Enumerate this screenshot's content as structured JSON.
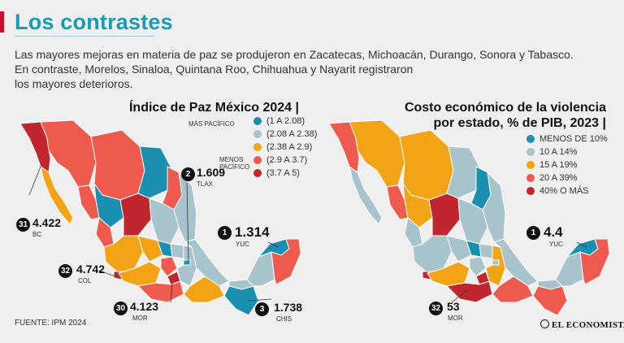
{
  "header": {
    "title": "Los contrastes",
    "intro_lines": [
      "Las mayores mejoras en materia de paz se produjeron en Zacatecas, Michoacán, Durango, Sonora y Tabasco.",
      "En contraste, Morelos, Sinaloa, Quintana Roo, Chihuahua y Nayarit registraron",
      "los mayores deterioros."
    ]
  },
  "colors": {
    "cat1": "#1a8fb0",
    "cat2": "#a7c4cd",
    "cat3": "#f2a316",
    "cat4": "#ee5a4e",
    "cat5": "#c0262d",
    "accent": "#1a9bb5",
    "title_bar": "#c8102e"
  },
  "left_map": {
    "title": "Índice de Paz México 2024 |",
    "legend_note_top": "MÁS PACÍFICO",
    "legend_note_bottom_1": "MENOS",
    "legend_note_bottom_2": "PACÍFICO",
    "legend": [
      "(1 A 2.08)",
      "(2.08 A 2.38)",
      "(2.38 A 2.9)",
      "(2.9 A 3.7)",
      "(3.7 A 5)"
    ],
    "callouts": {
      "bc": {
        "rank": "31",
        "value": "4.422",
        "abbr": "BC"
      },
      "tlax": {
        "rank": "2",
        "value": "1.609",
        "abbr": "TLAX"
      },
      "yuc": {
        "rank": "1",
        "value": "1.314",
        "abbr": "YUC"
      },
      "col": {
        "rank": "32",
        "value": "4.742",
        "abbr": "COL"
      },
      "mor": {
        "rank": "30",
        "value": "4.123",
        "abbr": "MOR"
      },
      "chis": {
        "rank": "3",
        "value": "1.738",
        "abbr": "CHIS"
      }
    }
  },
  "right_map": {
    "title_line1": "Costo económico de la violencia",
    "title_line2": "por estado, % de PIB, 2023 |",
    "legend": [
      "MENOS DE 10%",
      "10 A 14%",
      "15 A 19%",
      "20 A 39%",
      "40% O MÁS"
    ],
    "callouts": {
      "yuc": {
        "rank": "1",
        "value": "4.4",
        "abbr": "YUC"
      },
      "gro": {
        "rank": "32",
        "value": "53",
        "abbr": "MOR"
      }
    }
  },
  "footer": {
    "source": "FUENTE: IPM 2024",
    "logo": "EL ECONOMISTA"
  }
}
